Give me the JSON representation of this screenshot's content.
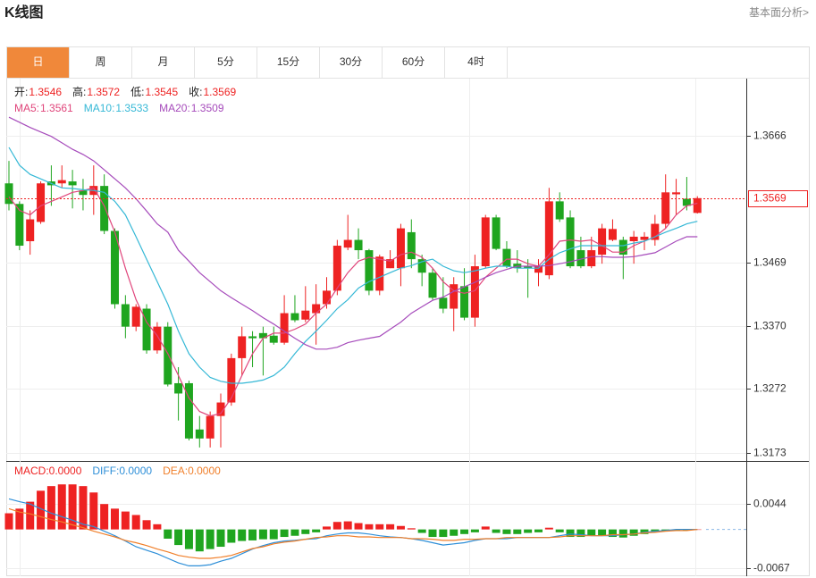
{
  "header": {
    "title": "K线图",
    "link": "基本面分析>"
  },
  "tabs": [
    "日",
    "周",
    "月",
    "5分",
    "15分",
    "30分",
    "60分",
    "4时"
  ],
  "active_tab": 0,
  "chart_data": [
    {
      "type": "candlestick",
      "up_color": "#ee2222",
      "down_color": "#1fa51f",
      "grid": true,
      "ylim": [
        1.316,
        1.3755
      ],
      "yticks": [
        1.3666,
        1.3469,
        {
          "value": 1.337,
          "label": "1.3370"
        },
        1.3272,
        1.3173
      ],
      "ohlc_labels": [
        "开:",
        "高:",
        "低:",
        "收:"
      ],
      "open": [
        1.3592,
        1.356,
        1.3502,
        1.3532,
        1.3595,
        1.3592,
        1.3595,
        1.3581,
        1.3574,
        1.3588,
        1.3518,
        1.3404,
        1.3369,
        1.3397,
        1.3332,
        1.3369,
        1.3281,
        1.3281,
        1.3209,
        1.3195,
        1.323,
        1.3251,
        1.332,
        1.3354,
        1.3359,
        1.3355,
        1.3344,
        1.339,
        1.338,
        1.339,
        1.3404,
        1.3425,
        1.3492,
        1.3504,
        1.3488,
        1.3425,
        1.346,
        1.346,
        1.3516,
        1.3474,
        1.3453,
        1.3414,
        1.3397,
        1.3432,
        1.3383,
        1.3463,
        1.3539,
        1.349,
        1.3467,
        1.3463,
        1.3453,
        1.3449,
        1.3564,
        1.3539,
        1.3488,
        1.3463,
        1.3481,
        1.3504,
        1.3504,
        1.3502,
        1.3504,
        1.3504,
        1.3529,
        1.3575,
        1.3568,
        1.3546
      ],
      "high": [
        1.3627,
        1.3564,
        1.355,
        1.3595,
        1.362,
        1.362,
        1.3613,
        1.3599,
        1.362,
        1.3606,
        1.3522,
        1.3418,
        1.3404,
        1.3404,
        1.3376,
        1.3376,
        1.3306,
        1.3285,
        1.323,
        1.3237,
        1.3265,
        1.3327,
        1.3369,
        1.3362,
        1.3369,
        1.3369,
        1.3418,
        1.3418,
        1.3432,
        1.3435,
        1.3446,
        1.3504,
        1.3543,
        1.3522,
        1.349,
        1.3481,
        1.3488,
        1.3529,
        1.3536,
        1.3481,
        1.346,
        1.3446,
        1.3446,
        1.346,
        1.3481,
        1.3543,
        1.3543,
        1.3502,
        1.3488,
        1.3474,
        1.3474,
        1.3585,
        1.3578,
        1.355,
        1.3509,
        1.3509,
        1.3529,
        1.3536,
        1.3509,
        1.3518,
        1.3516,
        1.3543,
        1.3606,
        1.3599,
        1.3602,
        1.3572
      ],
      "low": [
        1.355,
        1.3488,
        1.3481,
        1.3529,
        1.3557,
        1.3585,
        1.3553,
        1.355,
        1.3543,
        1.3513,
        1.3397,
        1.3351,
        1.3362,
        1.3327,
        1.3327,
        1.3276,
        1.3223,
        1.3192,
        1.3181,
        1.3181,
        1.3181,
        1.3246,
        1.3293,
        1.3306,
        1.3293,
        1.3341,
        1.3341,
        1.3376,
        1.3376,
        1.3341,
        1.3397,
        1.3418,
        1.3488,
        1.3474,
        1.3418,
        1.3418,
        1.346,
        1.3432,
        1.346,
        1.3432,
        1.3411,
        1.339,
        1.3362,
        1.3379,
        1.3369,
        1.346,
        1.3488,
        1.346,
        1.3453,
        1.3414,
        1.3432,
        1.3443,
        1.3532,
        1.346,
        1.346,
        1.346,
        1.3467,
        1.3502,
        1.3443,
        1.3467,
        1.3488,
        1.3495,
        1.3522,
        1.3543,
        1.355,
        1.3545
      ],
      "close": [
        1.356,
        1.3495,
        1.3536,
        1.3592,
        1.3589,
        1.3597,
        1.3589,
        1.3574,
        1.3588,
        1.3518,
        1.3404,
        1.3369,
        1.34,
        1.3332,
        1.3369,
        1.3279,
        1.3265,
        1.3195,
        1.3195,
        1.323,
        1.3251,
        1.332,
        1.3354,
        1.3351,
        1.3351,
        1.3344,
        1.339,
        1.3379,
        1.3394,
        1.3404,
        1.3425,
        1.3495,
        1.3504,
        1.3488,
        1.3425,
        1.3478,
        1.3474,
        1.3522,
        1.3474,
        1.3453,
        1.3414,
        1.3397,
        1.3435,
        1.3383,
        1.3463,
        1.3539,
        1.349,
        1.3463,
        1.346,
        1.346,
        1.3463,
        1.3564,
        1.3536,
        1.3463,
        1.3463,
        1.3488,
        1.3522,
        1.3521,
        1.3481,
        1.3509,
        1.3509,
        1.3529,
        1.3578,
        1.3578,
        1.3557,
        1.3569
      ],
      "series": [
        {
          "name": "MA5:",
          "color": "#e0457b",
          "values": [
            1.3571,
            1.355,
            1.3543,
            1.3557,
            1.3564,
            1.3571,
            1.3578,
            1.3581,
            1.3585,
            1.3557,
            1.3516,
            1.346,
            1.3411,
            1.3376,
            1.3355,
            1.3327,
            1.3293,
            1.3258,
            1.3237,
            1.323,
            1.3234,
            1.3258,
            1.3293,
            1.3327,
            1.3351,
            1.3359,
            1.3359,
            1.3365,
            1.3373,
            1.339,
            1.3404,
            1.3429,
            1.3453,
            1.3471,
            1.3477,
            1.3474,
            1.3471,
            1.3481,
            1.3485,
            1.3477,
            1.346,
            1.3439,
            1.3425,
            1.3421,
            1.3425,
            1.3446,
            1.346,
            1.3474,
            1.3474,
            1.3467,
            1.3463,
            1.3481,
            1.3502,
            1.3504,
            1.3502,
            1.3504,
            1.3495,
            1.3485,
            1.3485,
            1.3495,
            1.3502,
            1.3509,
            1.3522,
            1.3543,
            1.3557,
            1.3561
          ]
        },
        {
          "name": "MA10:",
          "color": "#35b8d6",
          "values": [
            1.3648,
            1.362,
            1.3606,
            1.3599,
            1.3592,
            1.3585,
            1.3584,
            1.3582,
            1.3581,
            1.3578,
            1.3564,
            1.3543,
            1.3509,
            1.3474,
            1.3439,
            1.3404,
            1.3362,
            1.3327,
            1.3306,
            1.329,
            1.3284,
            1.3281,
            1.3281,
            1.3283,
            1.3286,
            1.3293,
            1.3306,
            1.3327,
            1.3346,
            1.3362,
            1.3379,
            1.3397,
            1.3411,
            1.3429,
            1.3439,
            1.3446,
            1.3453,
            1.346,
            1.3464,
            1.347,
            1.3474,
            1.3463,
            1.3456,
            1.3453,
            1.3456,
            1.346,
            1.3463,
            1.3463,
            1.346,
            1.346,
            1.346,
            1.3474,
            1.3484,
            1.349,
            1.3495,
            1.3495,
            1.3495,
            1.3495,
            1.3495,
            1.3499,
            1.3502,
            1.3509,
            1.3516,
            1.3522,
            1.3529,
            1.3533
          ]
        },
        {
          "name": "MA20:",
          "color": "#a64bbb",
          "values": [
            1.3695,
            1.3687,
            1.3679,
            1.3672,
            1.3665,
            1.3655,
            1.3645,
            1.3637,
            1.3627,
            1.3613,
            1.3599,
            1.3585,
            1.3568,
            1.3549,
            1.3529,
            1.3516,
            1.3488,
            1.3471,
            1.3453,
            1.3439,
            1.3425,
            1.3414,
            1.3404,
            1.3394,
            1.3383,
            1.3373,
            1.3362,
            1.3351,
            1.3341,
            1.3334,
            1.3334,
            1.3337,
            1.3344,
            1.3348,
            1.3351,
            1.3354,
            1.3365,
            1.3376,
            1.339,
            1.34,
            1.341,
            1.3415,
            1.3424,
            1.3431,
            1.3438,
            1.3446,
            1.3453,
            1.3458,
            1.3463,
            1.3463,
            1.3463,
            1.3464,
            1.3467,
            1.347,
            1.3474,
            1.3478,
            1.3478,
            1.3477,
            1.3477,
            1.3478,
            1.3481,
            1.3484,
            1.3493,
            1.3502,
            1.3509,
            1.3509
          ]
        }
      ]
    },
    {
      "type": "macd",
      "up_color": "#ee2222",
      "down_color": "#1fa51f",
      "grid": true,
      "ylim": [
        -0.0081,
        0.0117
      ],
      "yticks": [
        0.0044,
        -0.0067
      ],
      "legend": [
        {
          "text": "MACD:0.0000",
          "color": "#ee2222"
        },
        {
          "text": "DIFF:0.0000",
          "color": "#2e8fd8"
        },
        {
          "text": "DEA:0.0000",
          "color": "#f07f2a"
        }
      ],
      "values": [
        0.0028,
        0.0036,
        0.0048,
        0.0067,
        0.0075,
        0.0078,
        0.0078,
        0.0075,
        0.0064,
        0.0044,
        0.0036,
        0.0031,
        0.0025,
        0.0016,
        0.0009,
        -0.0016,
        -0.0027,
        -0.0034,
        -0.0038,
        -0.0034,
        -0.003,
        -0.0023,
        -0.002,
        -0.0019,
        -0.0017,
        -0.0017,
        -0.0013,
        -0.0011,
        -0.0008,
        -0.0005,
        0.0005,
        0.0013,
        0.0014,
        0.0011,
        0.0009,
        0.0009,
        0.0009,
        0.0006,
        0.0002,
        -0.0006,
        -0.0013,
        -0.0013,
        -0.0011,
        -0.0008,
        -0.0005,
        0.0005,
        -0.0006,
        -0.0008,
        -0.0008,
        -0.0006,
        -0.0005,
        0.0003,
        -0.0005,
        -0.0013,
        -0.0013,
        -0.0011,
        -0.0011,
        -0.0013,
        -0.0014,
        -0.0011,
        -0.0008,
        -0.0005,
        -0.0002,
        -0.0002,
        -0.0002,
        0
      ],
      "series": [
        {
          "name": "DIFF",
          "color": "#2e8fd8",
          "values": [
            0.0053,
            0.0048,
            0.0044,
            0.0036,
            0.0028,
            0.0022,
            0.0016,
            0.0009,
            0.0005,
            -0.0003,
            -0.0011,
            -0.002,
            -0.003,
            -0.0036,
            -0.0042,
            -0.005,
            -0.0058,
            -0.0063,
            -0.0063,
            -0.0061,
            -0.0055,
            -0.005,
            -0.0042,
            -0.0034,
            -0.0028,
            -0.0023,
            -0.002,
            -0.0019,
            -0.0017,
            -0.0016,
            -0.0011,
            -0.0008,
            -0.0006,
            -0.0006,
            -0.0008,
            -0.0011,
            -0.0013,
            -0.0014,
            -0.0016,
            -0.0019,
            -0.0023,
            -0.0027,
            -0.0025,
            -0.0023,
            -0.0019,
            -0.0016,
            -0.0016,
            -0.0016,
            -0.0014,
            -0.0014,
            -0.0014,
            -0.0014,
            -0.0011,
            -0.0008,
            -0.0009,
            -0.0011,
            -0.0011,
            -0.0011,
            -0.0009,
            -0.0008,
            -0.0005,
            -0.0003,
            -0.0002,
            0,
            0,
            0
          ]
        },
        {
          "name": "DEA",
          "color": "#f07f2a",
          "values": [
            0.0036,
            0.003,
            0.0027,
            0.0022,
            0.0017,
            0.0013,
            0.0008,
            0.0003,
            -0.0003,
            -0.0008,
            -0.0013,
            -0.0019,
            -0.0023,
            -0.0028,
            -0.0034,
            -0.0039,
            -0.0045,
            -0.0048,
            -0.005,
            -0.005,
            -0.0048,
            -0.0045,
            -0.0039,
            -0.0033,
            -0.003,
            -0.0025,
            -0.0022,
            -0.002,
            -0.0017,
            -0.0014,
            -0.0013,
            -0.0011,
            -0.0011,
            -0.0013,
            -0.0013,
            -0.0014,
            -0.0014,
            -0.0014,
            -0.0016,
            -0.0016,
            -0.0017,
            -0.0019,
            -0.0019,
            -0.0017,
            -0.0017,
            -0.0016,
            -0.0016,
            -0.0014,
            -0.0014,
            -0.0014,
            -0.0014,
            -0.0014,
            -0.0013,
            -0.0011,
            -0.0011,
            -0.0011,
            -0.0011,
            -0.0009,
            -0.0009,
            -0.0008,
            -0.0006,
            -0.0005,
            -0.0003,
            -0.0002,
            -0.0002,
            0
          ]
        }
      ]
    }
  ]
}
